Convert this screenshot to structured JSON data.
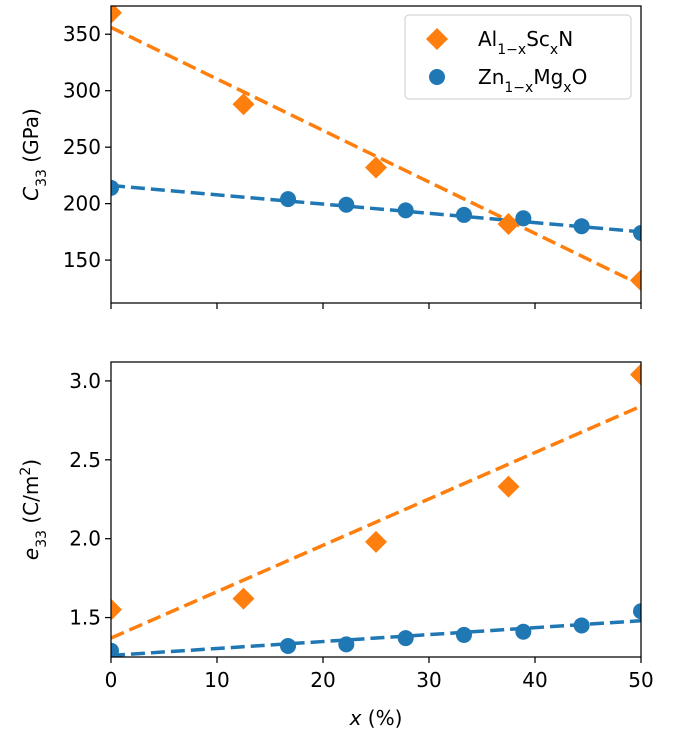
{
  "chart_data": [
    {
      "type": "scatter",
      "panel": "top",
      "xlim": [
        0,
        50
      ],
      "ylim": [
        112,
        375
      ],
      "yticks": [
        150,
        200,
        250,
        300,
        350
      ],
      "xticks": [
        0,
        10,
        20,
        30,
        40,
        50
      ],
      "show_xticklabels": false,
      "ylabel": {
        "main": "C",
        "sub": "33",
        "unit": " (GPa)"
      },
      "series": [
        {
          "key": "alscn",
          "name": "Al1−xScxN",
          "marker": "diamond",
          "color": "#ff7f0e",
          "x": [
            0,
            12.5,
            25,
            37.5,
            50
          ],
          "y": [
            369,
            288,
            232,
            182,
            132
          ],
          "fit": [
            [
              0,
              356
            ],
            [
              50,
              128
            ]
          ]
        },
        {
          "key": "znmgo",
          "name": "Zn1−xMgxO",
          "marker": "circle",
          "color": "#1f77b4",
          "x": [
            0,
            16.7,
            22.2,
            27.8,
            33.3,
            38.9,
            44.4,
            50
          ],
          "y": [
            214,
            204,
            199,
            194,
            190,
            187,
            180,
            174
          ],
          "fit": [
            [
              0,
              216
            ],
            [
              50,
              175
            ]
          ]
        }
      ]
    },
    {
      "type": "scatter",
      "panel": "bottom",
      "xlim": [
        0,
        50
      ],
      "ylim": [
        1.25,
        3.12
      ],
      "yticks": [
        1.5,
        2.0,
        2.5,
        3.0
      ],
      "ytick_labels": [
        "1.5",
        "2.0",
        "2.5",
        "3.0"
      ],
      "xticks": [
        0,
        10,
        20,
        30,
        40,
        50
      ],
      "show_xticklabels": true,
      "xlabel": {
        "italic": "x",
        "rest": " (%)"
      },
      "ylabel": {
        "main": "e",
        "sub": "33",
        "unit": " (C/m",
        "sup": "2",
        "close": ")"
      },
      "series": [
        {
          "key": "alscn",
          "name": "Al1−xScxN",
          "marker": "diamond",
          "color": "#ff7f0e",
          "x": [
            0,
            12.5,
            25,
            37.5,
            50
          ],
          "y": [
            1.55,
            1.62,
            1.98,
            2.33,
            3.04
          ],
          "fit": [
            [
              0,
              1.37
            ],
            [
              50,
              2.84
            ]
          ]
        },
        {
          "key": "znmgo",
          "name": "Zn1−xMgxO",
          "marker": "circle",
          "color": "#1f77b4",
          "x": [
            0,
            16.7,
            22.2,
            27.8,
            33.3,
            38.9,
            44.4,
            50
          ],
          "y": [
            1.29,
            1.32,
            1.33,
            1.37,
            1.39,
            1.41,
            1.45,
            1.54
          ],
          "fit": [
            [
              0,
              1.26
            ],
            [
              50,
              1.48
            ]
          ]
        }
      ]
    }
  ],
  "legend": {
    "placement": "top-right",
    "entries": [
      {
        "key": "alscn",
        "parts": [
          [
            "Al",
            ""
          ],
          [
            "1−x",
            "sub"
          ],
          [
            "Sc",
            ""
          ],
          [
            "x",
            "sub"
          ],
          [
            "N",
            ""
          ]
        ]
      },
      {
        "key": "znmgo",
        "parts": [
          [
            "Zn",
            ""
          ],
          [
            "1−x",
            "sub"
          ],
          [
            "Mg",
            ""
          ],
          [
            "x",
            "sub"
          ],
          [
            "O",
            ""
          ]
        ]
      }
    ]
  }
}
